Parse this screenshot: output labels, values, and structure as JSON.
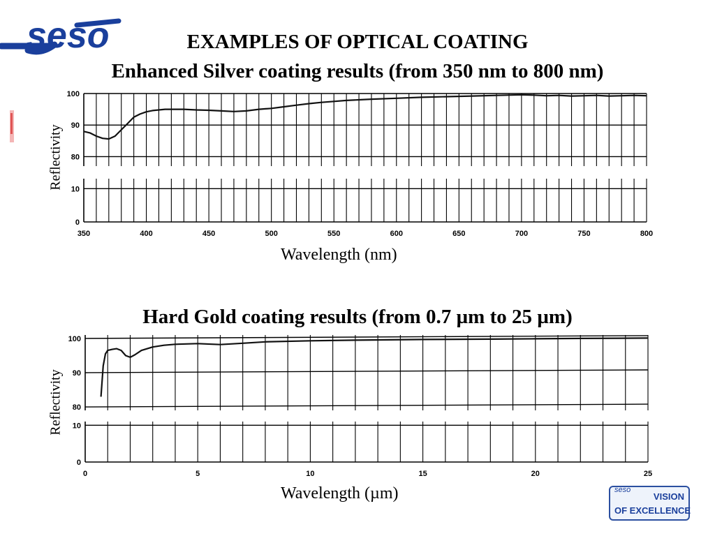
{
  "header": {
    "logo_text": "seso",
    "title": "EXAMPLES OF OPTICAL COATING"
  },
  "badge": {
    "brand": "seso",
    "line1": "VISION",
    "line2": "OF EXCELLENCE"
  },
  "colors": {
    "logo_blue": "#1a3f9c",
    "ink": "#000000"
  },
  "chart_data": [
    {
      "type": "line",
      "title": "Enhanced Silver coating results (from 350 nm to 800 nm)",
      "xlabel": "Wavelength (nm)",
      "ylabel": "Reflectivity",
      "xlim": [
        350,
        800
      ],
      "x_ticks": [
        350,
        400,
        450,
        500,
        550,
        600,
        650,
        700,
        750,
        800
      ],
      "x_tick_labels": [
        "350",
        "400",
        "450",
        "500",
        "550",
        "600",
        "650",
        "700",
        "750",
        "800"
      ],
      "y_ticks_upper": [
        80,
        90,
        100
      ],
      "y_ticks_lower": [
        0,
        10
      ],
      "ylim_upper": [
        77,
        100
      ],
      "ylim_lower": [
        0,
        13
      ],
      "broken_axis": true,
      "grid": true,
      "series": [
        {
          "x": [
            350,
            355,
            360,
            365,
            370,
            375,
            380,
            385,
            390,
            395,
            400,
            405,
            410,
            415,
            420,
            430,
            440,
            450,
            460,
            470,
            480,
            490,
            500,
            510,
            520,
            530,
            540,
            550,
            560,
            570,
            580,
            600,
            620,
            640,
            660,
            680,
            700,
            710,
            720,
            730,
            740,
            750,
            760,
            770,
            780,
            790,
            800
          ],
          "y": [
            88,
            87.5,
            86.5,
            85.8,
            85.6,
            86.5,
            88.5,
            90.5,
            92.5,
            93.5,
            94.2,
            94.6,
            94.8,
            95,
            95,
            95,
            94.8,
            94.7,
            94.5,
            94.3,
            94.5,
            95,
            95.3,
            95.8,
            96.3,
            96.8,
            97.2,
            97.5,
            97.8,
            98,
            98.2,
            98.5,
            98.8,
            99,
            99.2,
            99.4,
            99.6,
            99.5,
            99.3,
            99.4,
            99.2,
            99.3,
            99.4,
            99.2,
            99.3,
            99.4,
            99.3
          ]
        }
      ]
    },
    {
      "type": "line",
      "title": "Hard Gold coating results (from 0.7 µm to 25 µm)",
      "xlabel": "Wavelength (µm)",
      "ylabel": "Reflectivity",
      "xlim": [
        0,
        25
      ],
      "x_ticks": [
        0,
        5,
        10,
        15,
        20,
        25
      ],
      "x_tick_labels": [
        "0",
        "5",
        "10",
        "15",
        "20",
        "25"
      ],
      "y_ticks_upper": [
        80,
        90,
        100
      ],
      "y_ticks_lower": [
        0,
        10
      ],
      "ylim_upper": [
        79,
        101
      ],
      "ylim_lower": [
        0,
        11
      ],
      "broken_axis": true,
      "grid": true,
      "series": [
        {
          "x": [
            0.7,
            0.8,
            0.9,
            1.0,
            1.2,
            1.4,
            1.6,
            1.8,
            2.0,
            2.2,
            2.5,
            3,
            3.5,
            4,
            5,
            6,
            7,
            8,
            10,
            12,
            15,
            18,
            20,
            22,
            25
          ],
          "y": [
            83,
            92,
            95.5,
            96.5,
            96.8,
            97,
            96.5,
            95,
            94.5,
            95.2,
            96.5,
            97.5,
            98,
            98.3,
            98.5,
            98.2,
            98.6,
            99,
            99.3,
            99.5,
            99.7,
            99.8,
            99.9,
            100,
            100.1
          ]
        }
      ]
    }
  ]
}
